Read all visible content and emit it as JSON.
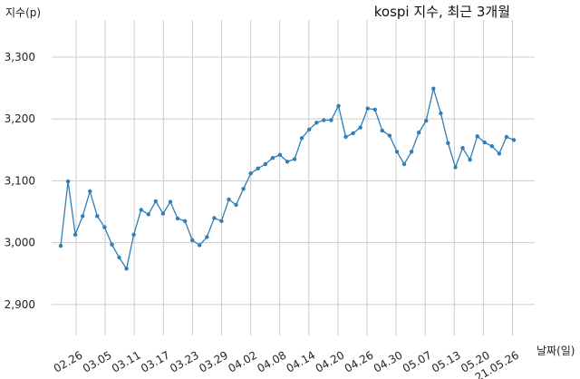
{
  "chart_data": {
    "type": "line",
    "title": "kospi 지수, 최근 3개월",
    "ylabel": "지수(p)",
    "xlabel": "날짜(일)",
    "ylim": [
      2850,
      3360
    ],
    "yticks": [
      2900,
      3000,
      3100,
      3200,
      3300
    ],
    "ytick_labels": [
      "2,900",
      "3,000",
      "3,100",
      "3,200",
      "3,300"
    ],
    "xtick_labels": [
      "02.26",
      "03.05",
      "03.11",
      "03.17",
      "03.23",
      "03.29",
      "04.02",
      "04.08",
      "04.14",
      "04.20",
      "04.26",
      "04.30",
      "05.07",
      "05.13",
      "05.20",
      "21.05.26"
    ],
    "grid": true,
    "color": "#2f7fb6",
    "series": [
      {
        "values": [
          2995,
          3099,
          3013,
          3043,
          3083,
          3043,
          3025,
          2997,
          2976,
          2958,
          3013,
          3053,
          3046,
          3067,
          3047,
          3066,
          3039,
          3035,
          3004,
          2996,
          3009,
          3040,
          3035,
          3070,
          3061,
          3087,
          3112,
          3120,
          3127,
          3137,
          3142,
          3131,
          3135,
          3169,
          3183,
          3194,
          3198,
          3198,
          3221,
          3171,
          3177,
          3186,
          3217,
          3215,
          3181,
          3173,
          3147,
          3127,
          3147,
          3178,
          3197,
          3249,
          3209,
          3161,
          3122,
          3153,
          3134,
          3172,
          3162,
          3156,
          3144,
          3171,
          3166
        ]
      }
    ]
  }
}
